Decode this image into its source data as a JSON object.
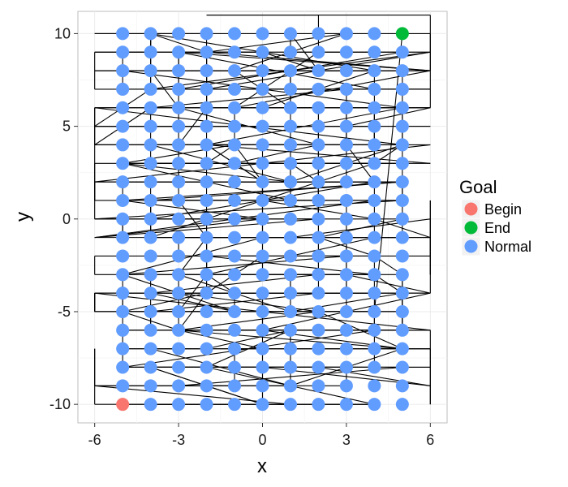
{
  "chart_data": {
    "type": "scatter",
    "xlabel": "x",
    "ylabel": "y",
    "xlim": [
      -6.6,
      6.6
    ],
    "ylim": [
      -11.0,
      11.2
    ],
    "x_ticks": [
      -6,
      -3,
      0,
      3,
      6
    ],
    "x_tick_labels": [
      "-6",
      "-3",
      "0",
      "3",
      "6"
    ],
    "y_ticks": [
      -10,
      -5,
      0,
      5,
      10
    ],
    "y_tick_labels": [
      "-10",
      "-5",
      "0",
      "5",
      "10"
    ],
    "grid": true,
    "legend": {
      "title": "Goal",
      "position": "right",
      "entries": [
        {
          "label": "Begin",
          "color": "#F8766D"
        },
        {
          "label": "End",
          "color": "#00BA38"
        },
        {
          "label": "Normal",
          "color": "#619CFF"
        }
      ]
    },
    "points": {
      "normal_grid": {
        "x_from": -5,
        "x_to": 5,
        "y_from": -10,
        "y_to": 10,
        "step": 1,
        "group": "Normal"
      },
      "begin": {
        "x": -5,
        "y": -10,
        "group": "Begin"
      },
      "end": {
        "x": 5,
        "y": 10,
        "group": "End"
      }
    },
    "path_x_range": [
      -6,
      6
    ],
    "path_y_range": [
      -10,
      11
    ],
    "path_segments": 520,
    "path_color": "#000000"
  },
  "colors": {
    "panel_background": "#ffffff",
    "grid_major": "#ebebeb",
    "grid_minor": "#f5f5f5",
    "panel_border": "#bdbdbd"
  }
}
